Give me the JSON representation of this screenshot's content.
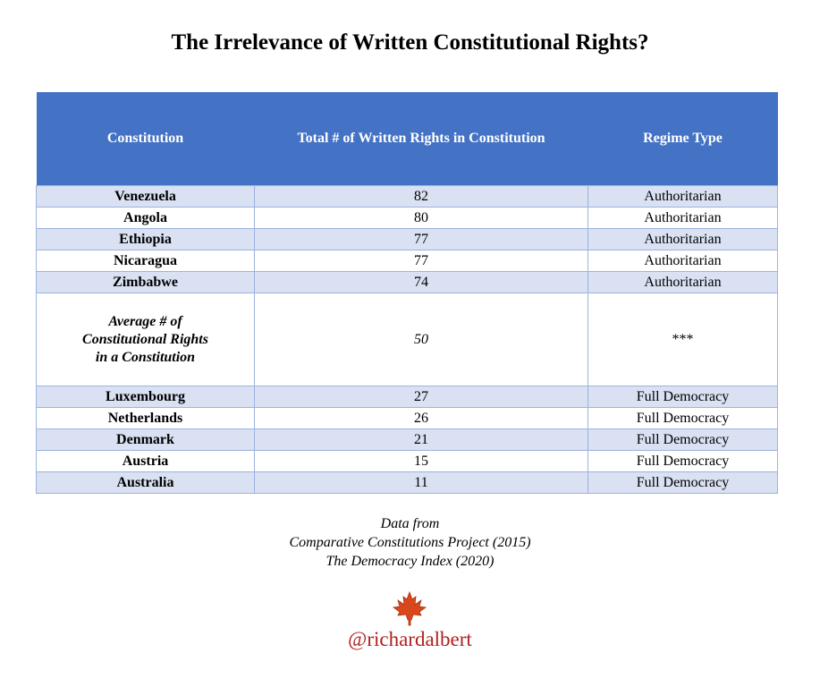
{
  "header": {
    "title": "The Irrelevance of Written Constitutional Rights?"
  },
  "table": {
    "columns": [
      "Constitution",
      "Total # of Written Rights in Constitution",
      "Regime Type"
    ],
    "rows": [
      [
        "Venezuela",
        82,
        "Authoritarian"
      ],
      [
        "Angola",
        80,
        "Authoritarian"
      ],
      [
        "Ethiopia",
        77,
        "Authoritarian"
      ],
      [
        "Nicaragua",
        77,
        "Authoritarian"
      ],
      [
        "Zimbabwe",
        74,
        "Authoritarian"
      ],
      [
        [
          "Average # of",
          "Constitutional Rights",
          "in a Constitution"
        ],
        50,
        "***"
      ],
      [
        "Luxembourg",
        27,
        "Full Democracy"
      ],
      [
        "Netherlands",
        26,
        "Full Democracy"
      ],
      [
        "Denmark",
        21,
        "Full Democracy"
      ],
      [
        "Austria",
        15,
        "Full Democracy"
      ],
      [
        "Australia",
        11,
        "Full Democracy"
      ]
    ]
  },
  "footer": {
    "source_lines": [
      "Data from",
      "Comparative Constitutions Project (2015)",
      "The Democracy Index (2020)"
    ],
    "handle": "@richardalbert"
  }
}
